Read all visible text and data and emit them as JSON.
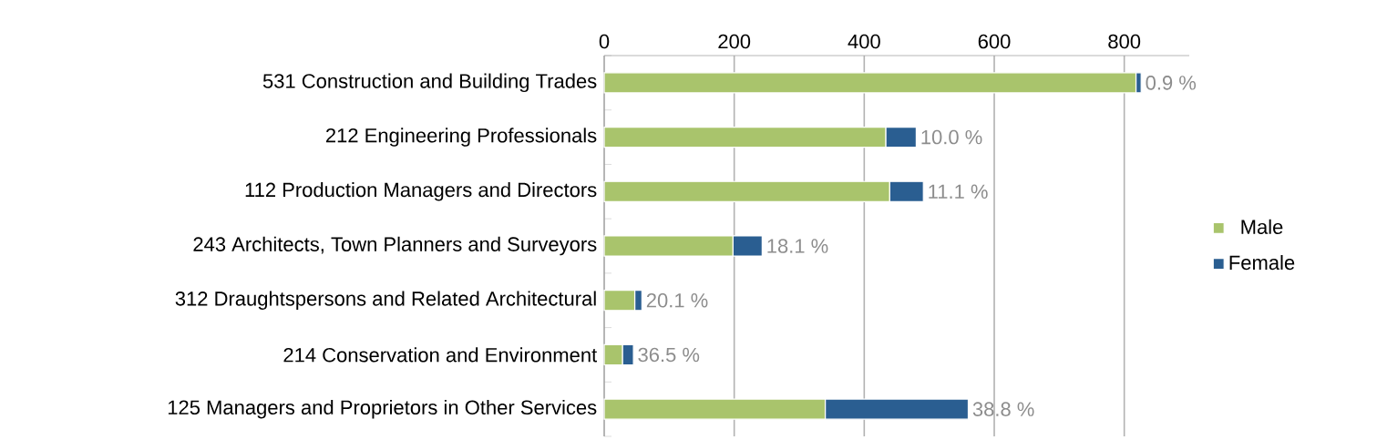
{
  "chart_data": {
    "type": "bar",
    "orientation": "horizontal",
    "stacked": true,
    "categories": [
      "531 Construction and Building Trades",
      "212 Engineering Professionals",
      "112 Production Managers and Directors",
      "243 Architects, Town Planners and Surveyors",
      "312 Draughtspersons and Related Architectural",
      "214 Conservation and Environment",
      "125 Managers and Proprietors in Other Services"
    ],
    "series": [
      {
        "name": "Male",
        "color": "#a9c46c",
        "values": [
          818,
          433,
          439,
          198,
          47,
          28,
          340
        ]
      },
      {
        "name": "Female",
        "color": "#2a5e91",
        "values": [
          8,
          47,
          52,
          45,
          11,
          17,
          220
        ]
      }
    ],
    "annotations": [
      "0.9 %",
      "10.0 %",
      "11.1 %",
      "18.1 %",
      "20.1 %",
      "36.5 %",
      "38.8 %"
    ],
    "xlim": [
      0,
      900
    ],
    "xticks": [
      0,
      200,
      400,
      600,
      800
    ],
    "grid": "x",
    "legend": "right"
  }
}
